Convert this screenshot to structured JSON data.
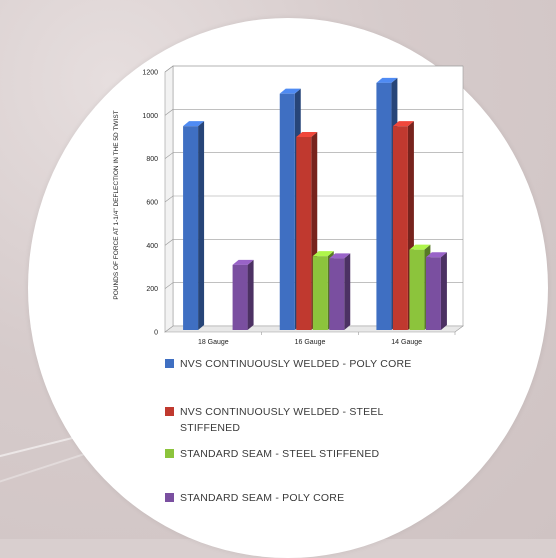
{
  "chart_data": {
    "type": "bar",
    "style": "3d-clustered-column",
    "categories": [
      "18 Gauge",
      "16 Gauge",
      "14 Gauge"
    ],
    "ylabel": "POUNDS OF FORCE AT 1-1/4\" DEFLECTION IN THE 5D TWIST",
    "xlabel": "",
    "ylim": [
      0,
      1200
    ],
    "yticks": [
      0,
      200,
      400,
      600,
      800,
      1000,
      1200
    ],
    "grid": true,
    "legend_position": "bottom",
    "series": [
      {
        "name": "NVS CONTINUOUSLY WELDED - POLY CORE",
        "color": "#3f6fc2",
        "values": [
          950,
          1100,
          1150
        ]
      },
      {
        "name": "NVS CONTINUOUSLY WELDED - STEEL STIFFENED",
        "color": "#c0392f",
        "values": [
          null,
          900,
          950
        ]
      },
      {
        "name": "STANDARD SEAM - STEEL STIFFENED",
        "color": "#8cc43c",
        "values": [
          null,
          350,
          380
        ]
      },
      {
        "name": "STANDARD SEAM - POLY CORE",
        "color": "#7a4fa0",
        "values": [
          310,
          340,
          345
        ]
      }
    ]
  },
  "legend": {
    "items": [
      {
        "label": "NVS CONTINUOUSLY WELDED - POLY CORE",
        "color": "#3f6fc2"
      },
      {
        "label": "NVS CONTINUOUSLY WELDED - STEEL STIFFENED",
        "color": "#c0392f"
      },
      {
        "label": "STANDARD SEAM - STEEL STIFFENED",
        "color": "#8cc43c"
      },
      {
        "label": "STANDARD SEAM - POLY CORE",
        "color": "#7a4fa0"
      }
    ]
  }
}
